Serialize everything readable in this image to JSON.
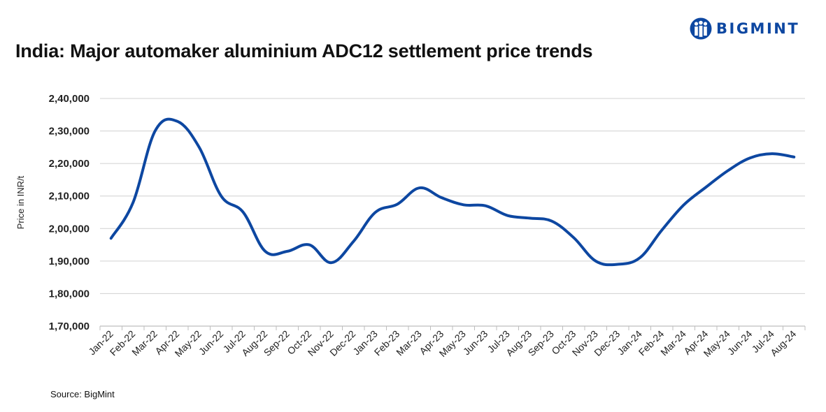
{
  "brand": {
    "name": "BIGMINT",
    "color": "#0d47a1"
  },
  "source": "Source: BigMint",
  "chart_data": {
    "type": "line",
    "title": "India: Major automaker aluminium ADC12 settlement price trends",
    "xlabel": "",
    "ylabel": "Price in INR/t",
    "ylim": [
      170000,
      240000
    ],
    "yticks": [
      170000,
      180000,
      190000,
      200000,
      210000,
      220000,
      230000,
      240000
    ],
    "ytick_labels": [
      "1,70,000",
      "1,80,000",
      "1,90,000",
      "2,00,000",
      "2,10,000",
      "2,20,000",
      "2,30,000",
      "2,40,000"
    ],
    "grid": true,
    "legend": "none",
    "categories": [
      "Jan-22",
      "Feb-22",
      "Mar-22",
      "Apr-22",
      "May-22",
      "Jun-22",
      "Jul-22",
      "Aug-22",
      "Sep-22",
      "Oct-22",
      "Nov-22",
      "Dec-22",
      "Jan-23",
      "Feb-23",
      "Mar-23",
      "Apr-23",
      "May-23",
      "Jun-23",
      "Jul-23",
      "Aug-23",
      "Sep-23",
      "Oct-23",
      "Nov-23",
      "Dec-23",
      "Jan-24",
      "Feb-24",
      "Mar-24",
      "Apr-24",
      "May-24",
      "Jun-24",
      "Jul-24",
      "Aug-24"
    ],
    "series": [
      {
        "color": "#0d47a1",
        "values": [
          197000,
          208000,
          230000,
          233000,
          225000,
          210000,
          205000,
          193000,
          193000,
          195000,
          189500,
          196000,
          205000,
          207500,
          212500,
          209500,
          207300,
          207000,
          204000,
          203200,
          202300,
          197200,
          190000,
          189000,
          191000,
          199500,
          207300,
          212700,
          217800,
          221700,
          223000,
          222000
        ]
      }
    ]
  }
}
